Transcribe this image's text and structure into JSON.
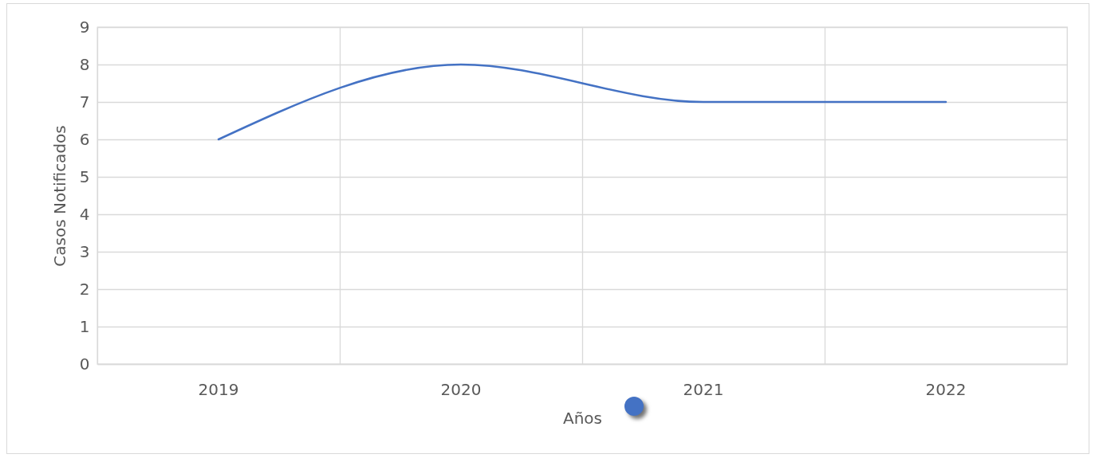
{
  "chart_data": {
    "type": "line",
    "xlabel": "Años",
    "ylabel": "Casos Notificados",
    "categories": [
      "2019",
      "2020",
      "2021",
      "2022"
    ],
    "series": [
      {
        "color": "#4472c4",
        "values": [
          6,
          8,
          7,
          7
        ]
      }
    ],
    "ylim": [
      0,
      9
    ],
    "yticks": [
      0,
      1,
      2,
      3,
      4,
      5,
      6,
      7,
      8,
      9
    ],
    "grid": true
  }
}
